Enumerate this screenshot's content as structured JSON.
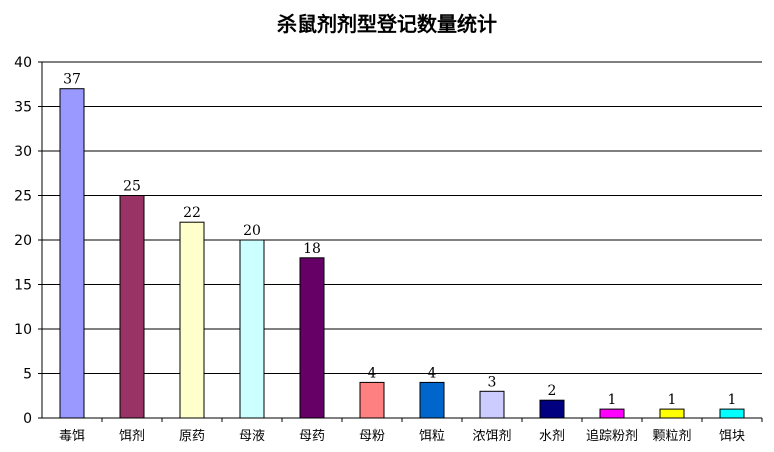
{
  "chart_data": {
    "type": "bar",
    "title": "杀鼠剂剂型登记数量统计",
    "xlabel": "",
    "ylabel": "",
    "ylim": [
      0,
      40
    ],
    "yticks": [
      0,
      5,
      10,
      15,
      20,
      25,
      30,
      35,
      40
    ],
    "grid": true,
    "legend": "none",
    "categories": [
      "毒饵",
      "饵剂",
      "原药",
      "母液",
      "母药",
      "母粉",
      "饵粒",
      "浓饵剂",
      "水剂",
      "追踪粉剂",
      "颗粒剂",
      "饵块"
    ],
    "values": [
      37,
      25,
      22,
      20,
      18,
      4,
      4,
      3,
      2,
      1,
      1,
      1
    ],
    "colors": [
      "#9999ff",
      "#993366",
      "#ffffcc",
      "#ccffff",
      "#660066",
      "#ff8080",
      "#0066cc",
      "#ccccff",
      "#000080",
      "#ff00ff",
      "#ffff00",
      "#00ffff"
    ]
  }
}
